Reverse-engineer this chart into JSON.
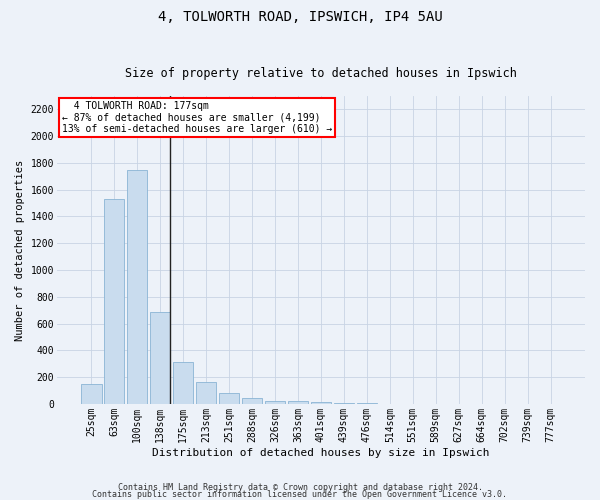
{
  "title1": "4, TOLWORTH ROAD, IPSWICH, IP4 5AU",
  "title2": "Size of property relative to detached houses in Ipswich",
  "xlabel": "Distribution of detached houses by size in Ipswich",
  "ylabel": "Number of detached properties",
  "categories": [
    "25sqm",
    "63sqm",
    "100sqm",
    "138sqm",
    "175sqm",
    "213sqm",
    "251sqm",
    "288sqm",
    "326sqm",
    "363sqm",
    "401sqm",
    "439sqm",
    "476sqm",
    "514sqm",
    "551sqm",
    "589sqm",
    "627sqm",
    "664sqm",
    "702sqm",
    "739sqm",
    "777sqm"
  ],
  "values": [
    150,
    1530,
    1750,
    690,
    310,
    160,
    85,
    45,
    25,
    20,
    15,
    5,
    5,
    3,
    0,
    0,
    0,
    0,
    0,
    0,
    0
  ],
  "bar_color": "#c9dcee",
  "bar_edge_color": "#8ab4d4",
  "highlight_line_color": "#222222",
  "annotation_text": "  4 TOLWORTH ROAD: 177sqm\n← 87% of detached houses are smaller (4,199)\n13% of semi-detached houses are larger (610) →",
  "annotation_box_facecolor": "white",
  "annotation_box_edgecolor": "red",
  "ylim": [
    0,
    2300
  ],
  "yticks": [
    0,
    200,
    400,
    600,
    800,
    1000,
    1200,
    1400,
    1600,
    1800,
    2000,
    2200
  ],
  "grid_color": "#c8d4e4",
  "bg_color": "#edf2f9",
  "footer1": "Contains HM Land Registry data © Crown copyright and database right 2024.",
  "footer2": "Contains public sector information licensed under the Open Government Licence v3.0.",
  "title1_fontsize": 10,
  "title2_fontsize": 8.5,
  "xlabel_fontsize": 8,
  "ylabel_fontsize": 7.5,
  "tick_fontsize": 7,
  "annotation_fontsize": 7,
  "footer_fontsize": 6
}
